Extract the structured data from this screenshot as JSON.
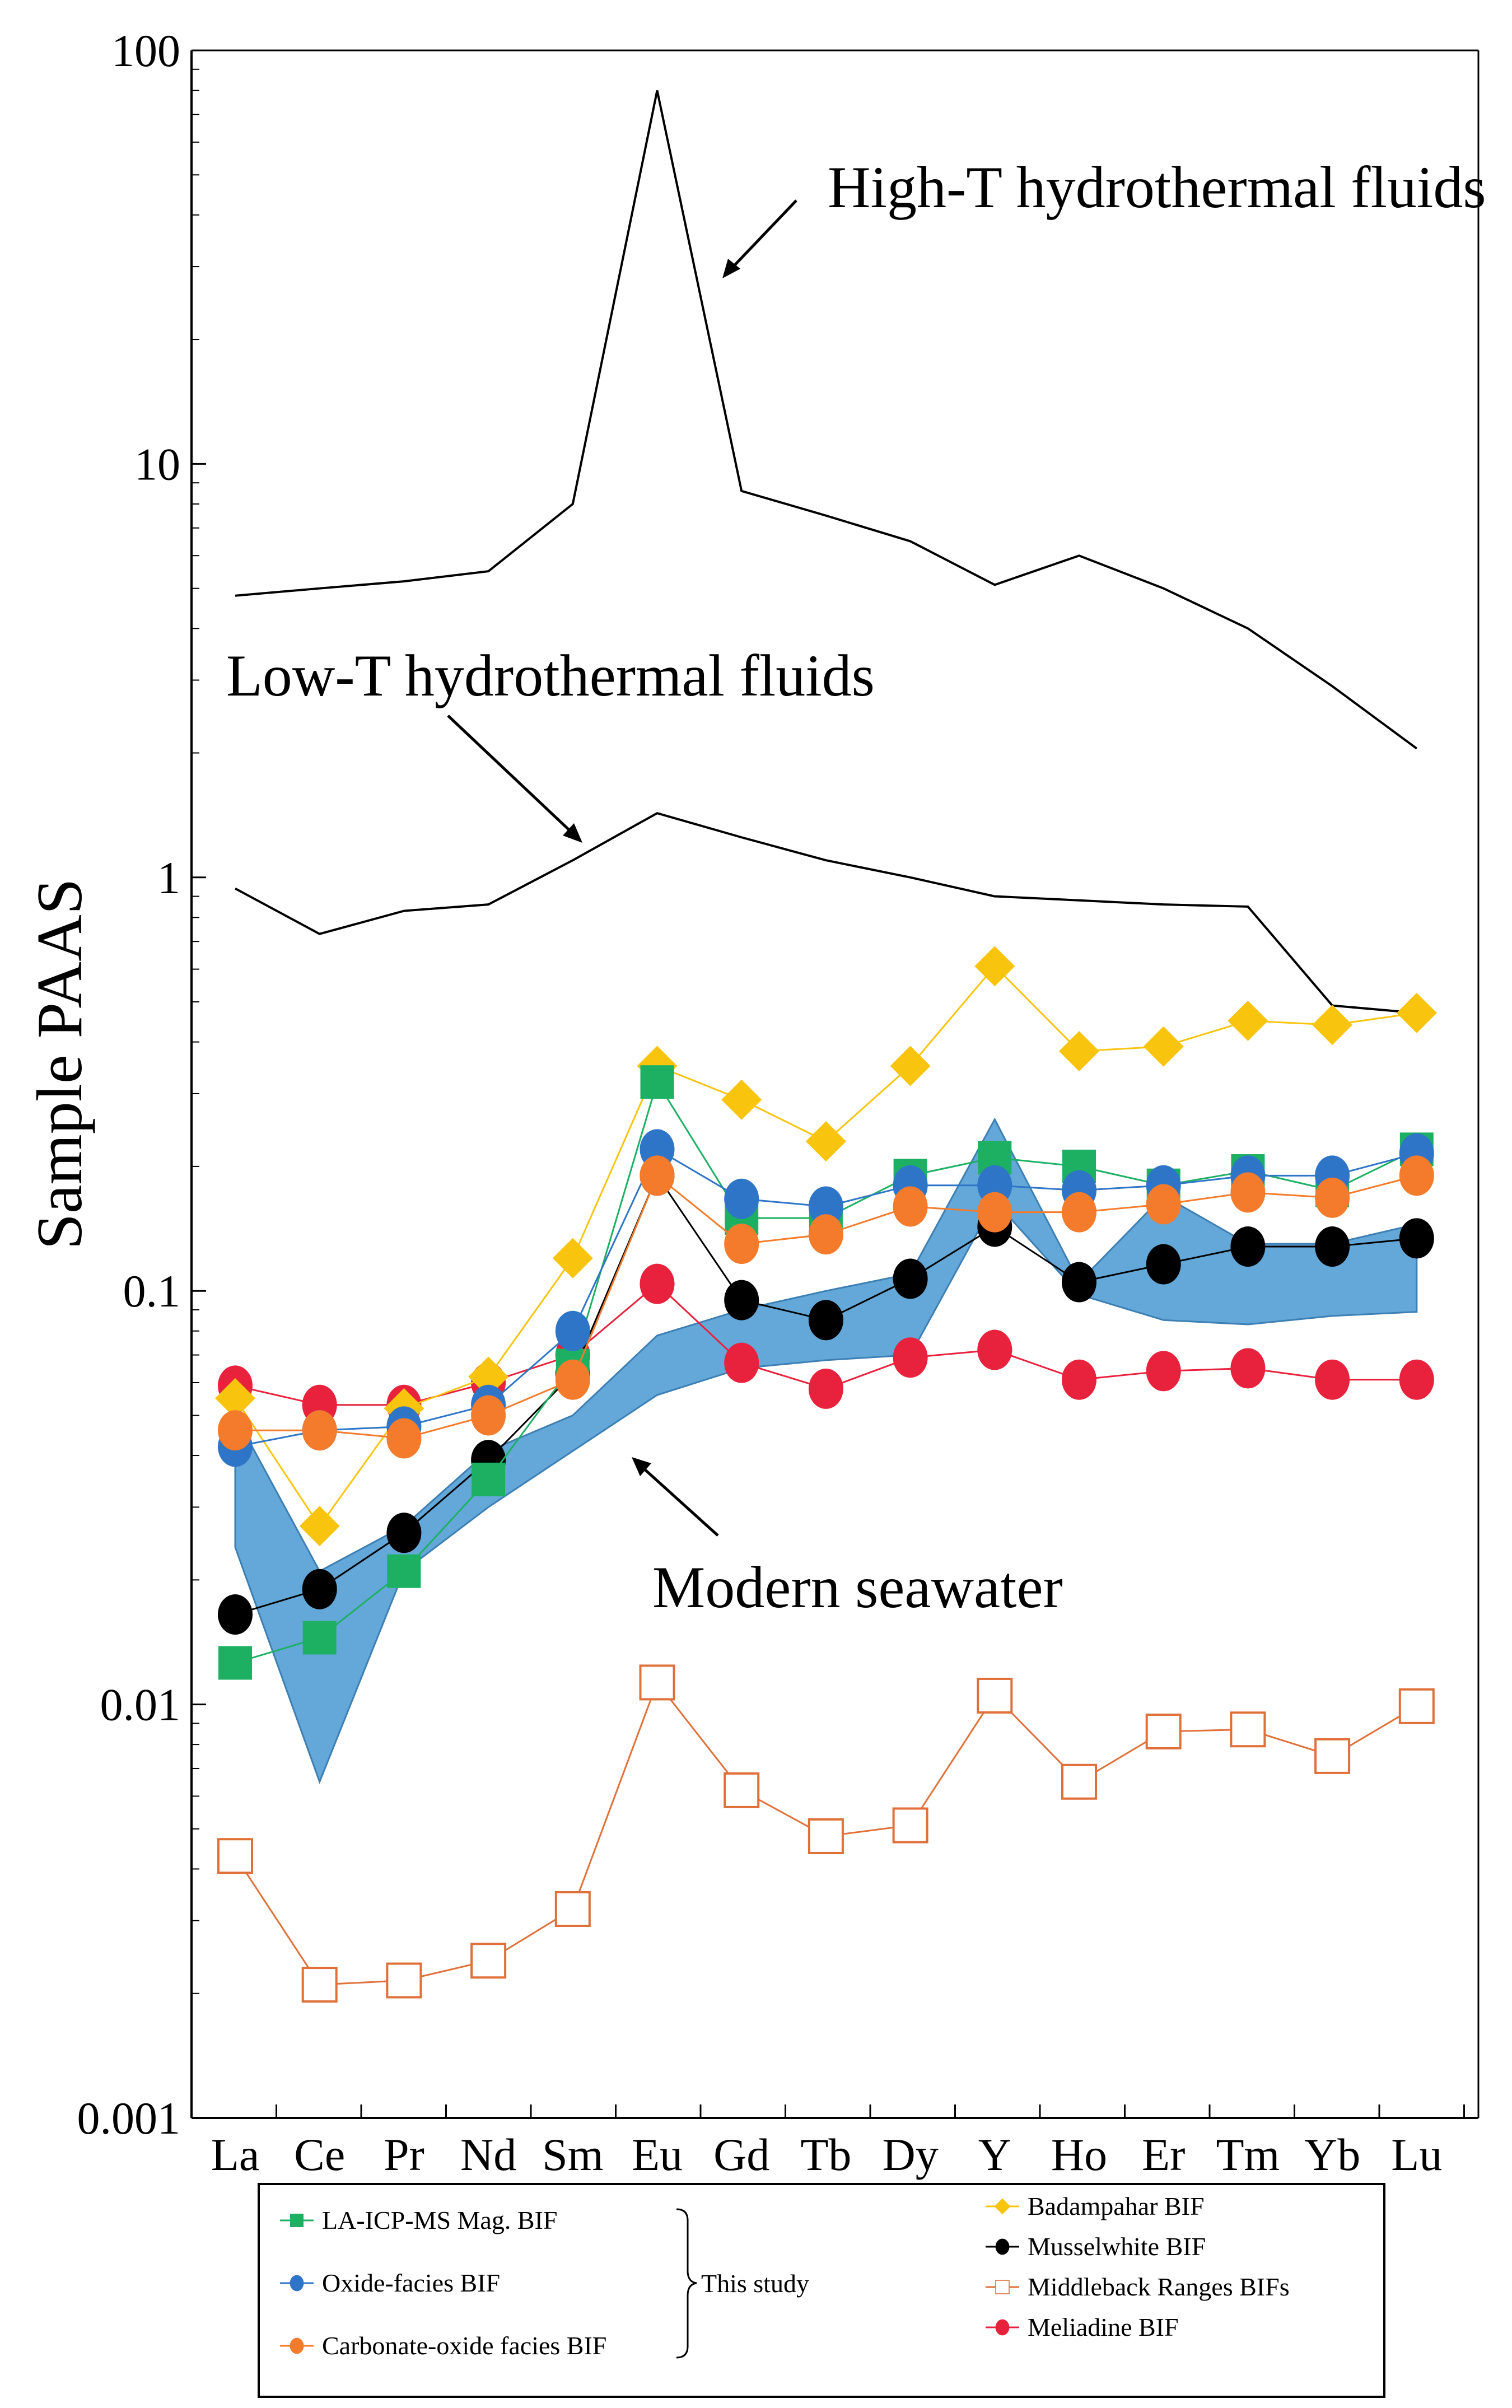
{
  "chart_data": {
    "type": "line",
    "title": "",
    "xlabel": "",
    "ylabel": "Sample PAAS",
    "yscale": "log",
    "ylim": [
      0.001,
      100
    ],
    "yticks": [
      {
        "value": 0.001,
        "label": "0.001"
      },
      {
        "value": 0.01,
        "label": "0.01"
      },
      {
        "value": 0.1,
        "label": "0.1"
      },
      {
        "value": 1,
        "label": "1"
      },
      {
        "value": 10,
        "label": "10"
      },
      {
        "value": 100,
        "label": "100"
      }
    ],
    "categories": [
      "La",
      "Ce",
      "Pr",
      "Nd",
      "Sm",
      "Eu",
      "Gd",
      "Tb",
      "Dy",
      "Y",
      "Ho",
      "Er",
      "Tm",
      "Yb",
      "Lu"
    ],
    "series": [
      {
        "name": "High-T hydrothermal fluids",
        "color": "#000000",
        "marker": "none",
        "values": [
          4.8,
          5.0,
          5.2,
          5.5,
          8.0,
          80,
          8.6,
          7.5,
          6.5,
          5.1,
          6.0,
          5.0,
          4.0,
          2.9,
          2.05
        ]
      },
      {
        "name": "Low-T hydrothermal fluids",
        "color": "#000000",
        "marker": "none",
        "values": [
          0.94,
          0.73,
          0.83,
          0.86,
          1.1,
          1.43,
          1.25,
          1.1,
          1.0,
          0.9,
          0.88,
          0.86,
          0.85,
          0.49,
          0.47
        ]
      },
      {
        "name": "LA-ICP-MS Mag. BIF",
        "color": "#1DB063",
        "marker": "square",
        "values": [
          0.0126,
          0.0145,
          0.021,
          0.035,
          0.066,
          0.32,
          0.15,
          0.15,
          0.19,
          0.21,
          0.2,
          0.18,
          0.195,
          0.175,
          0.22
        ]
      },
      {
        "name": "Oxide-facies BIF",
        "color": "#2E75C8",
        "marker": "circle",
        "values": [
          0.042,
          0.046,
          0.047,
          0.053,
          0.08,
          0.22,
          0.167,
          0.16,
          0.18,
          0.18,
          0.175,
          0.18,
          0.19,
          0.19,
          0.215
        ]
      },
      {
        "name": "Carbonate-oxide facies BIF",
        "color": "#F47B2B",
        "marker": "circle",
        "values": [
          0.046,
          0.046,
          0.044,
          0.05,
          0.061,
          0.19,
          0.13,
          0.137,
          0.16,
          0.155,
          0.155,
          0.162,
          0.173,
          0.168,
          0.19
        ]
      },
      {
        "name": "Badampahar BIF",
        "color": "#F8C40E",
        "marker": "diamond",
        "values": [
          0.055,
          0.027,
          0.052,
          0.062,
          0.12,
          0.35,
          0.29,
          0.23,
          0.35,
          0.61,
          0.38,
          0.39,
          0.45,
          0.44,
          0.47
        ]
      },
      {
        "name": "Musselwhite BIF",
        "color": "#000000",
        "marker": "circle",
        "values": [
          0.0165,
          0.019,
          0.026,
          0.039,
          0.063,
          0.19,
          0.095,
          0.085,
          0.107,
          0.143,
          0.105,
          0.116,
          0.128,
          0.128,
          0.134
        ]
      },
      {
        "name": "Middleback Ranges BIFs",
        "color": "#E0703A",
        "marker": "open-square",
        "values": [
          0.0043,
          0.0021,
          0.00215,
          0.0024,
          0.0032,
          0.0113,
          0.0062,
          0.0048,
          0.0051,
          0.0105,
          0.0065,
          0.0086,
          0.0087,
          0.0075,
          0.0099
        ]
      },
      {
        "name": "Meliadine BIF",
        "color": "#E8213C",
        "marker": "circle",
        "values": [
          0.059,
          0.053,
          0.053,
          0.06,
          0.07,
          0.104,
          0.067,
          0.058,
          0.069,
          0.072,
          0.061,
          0.064,
          0.065,
          0.061,
          0.061
        ]
      }
    ],
    "band": {
      "name": "Modern seawater",
      "color": "#5BA3D6",
      "upper": [
        0.05,
        0.021,
        0.027,
        0.041,
        0.05,
        0.078,
        0.09,
        0.1,
        0.11,
        0.26,
        0.105,
        0.17,
        0.13,
        0.13,
        0.145
      ],
      "lower": [
        0.024,
        0.0065,
        0.021,
        0.03,
        0.041,
        0.056,
        0.065,
        0.068,
        0.07,
        0.165,
        0.098,
        0.085,
        0.083,
        0.087,
        0.089
      ]
    },
    "annotations": [
      {
        "text": "High-T hydrothermal fluids"
      },
      {
        "text": "Low-T hydrothermal fluids"
      },
      {
        "text": "Modern seawater"
      }
    ],
    "legend": {
      "left": [
        "LA-ICP-MS Mag. BIF",
        "Oxide-facies BIF",
        "Carbonate-oxide facies BIF"
      ],
      "right": [
        "Badampahar BIF",
        "Musselwhite BIF",
        "Middleback Ranges BIFs",
        "Meliadine BIF"
      ],
      "group_label": "This study"
    }
  }
}
